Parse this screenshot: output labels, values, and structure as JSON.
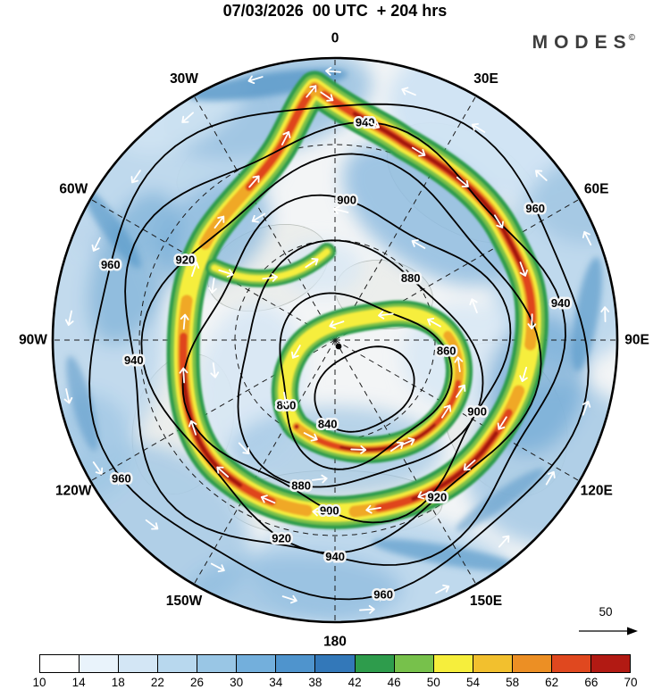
{
  "header": {
    "title": "07/03/2026  00 UTC  + 204 hrs",
    "brand": "MODES",
    "brand_mark": "©"
  },
  "chart_data": {
    "type": "heatmap",
    "subtype": "north-polar-stereographic-weather-map",
    "title": "07/03/2026 00 UTC + 204 hrs",
    "init_time": "07/03/2026 00 UTC",
    "lead_time_hrs": 204,
    "longitude_labels": [
      "0",
      "30E",
      "60E",
      "90E",
      "120E",
      "150E",
      "180",
      "150W",
      "120W",
      "90W",
      "60W",
      "30W"
    ],
    "contour_levels": [
      840,
      860,
      880,
      900,
      920,
      940,
      960
    ],
    "contour_interval": 20,
    "colorbar": {
      "tick_labels": [
        "10",
        "14",
        "18",
        "22",
        "26",
        "30",
        "34",
        "38",
        "42",
        "46",
        "50",
        "54",
        "58",
        "62",
        "66",
        "70"
      ],
      "colors": [
        "#ffffff",
        "#e9f3fb",
        "#d3e6f5",
        "#b8d8ee",
        "#99c6e5",
        "#73afdc",
        "#4f94cd",
        "#3378b9",
        "#2e9c4c",
        "#77c14b",
        "#f6ee3c",
        "#f2c02e",
        "#ec8f24",
        "#e0481f",
        "#b21a13"
      ],
      "position": "bottom"
    },
    "wind_reference_arrow": "50",
    "notes": "Shaded field with white streamline arrows (jet stream) and black labeled contours; dashed lat/lon graticule every 30 degrees"
  }
}
